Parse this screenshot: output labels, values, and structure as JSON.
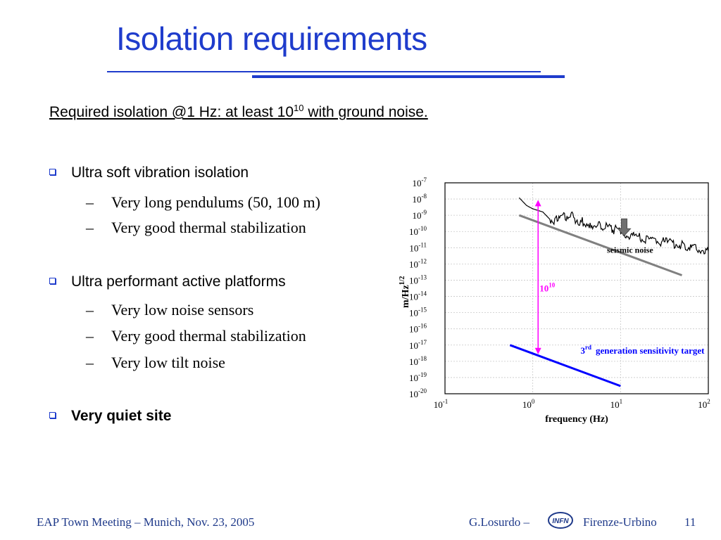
{
  "slide": {
    "title": "Isolation requirements",
    "intro": {
      "label": "Required isolation @1 Hz",
      "text_before": ": at least 10",
      "exponent": "10",
      "text_after": " with ground noise."
    },
    "bullets": [
      {
        "text": "Ultra soft vibration isolation",
        "subitems": [
          "Very long pendulums (50, 100 m)",
          "Very good thermal stabilization"
        ]
      },
      {
        "text": "Ultra performant active platforms",
        "subitems": [
          "Very low noise sensors",
          "Very good thermal stabilization",
          "Very low tilt noise"
        ]
      },
      {
        "text": "Very quiet site",
        "subitems": []
      }
    ],
    "sub_dash": "–"
  },
  "footer": {
    "left": "EAP Town Meeting – Munich, Nov. 23, 2005",
    "author": "G.Losurdo –",
    "logo_text": "INFN",
    "affiliation": "Firenze-Urbino",
    "page_number": "11"
  },
  "chart_data": {
    "type": "line",
    "xlabel": "frequency (Hz)",
    "ylabel": "m/Hz^1/2",
    "x_scale": "log",
    "y_scale": "log",
    "xlim": [
      0.1,
      100
    ],
    "ylim": [
      1e-20,
      1e-07
    ],
    "x_tick_labels": [
      {
        "base": "10",
        "exp": "-1"
      },
      {
        "base": "10",
        "exp": "0"
      },
      {
        "base": "10",
        "exp": "1"
      },
      {
        "base": "10",
        "exp": "2"
      }
    ],
    "y_tick_labels": [
      {
        "base": "10",
        "exp": "-7"
      },
      {
        "base": "10",
        "exp": "-8"
      },
      {
        "base": "10",
        "exp": "-9"
      },
      {
        "base": "10",
        "exp": "-10"
      },
      {
        "base": "10",
        "exp": "-11"
      },
      {
        "base": "10",
        "exp": "-12"
      },
      {
        "base": "10",
        "exp": "-13"
      },
      {
        "base": "10",
        "exp": "-14"
      },
      {
        "base": "10",
        "exp": "-15"
      },
      {
        "base": "10",
        "exp": "-16"
      },
      {
        "base": "10",
        "exp": "-17"
      },
      {
        "base": "10",
        "exp": "-18"
      },
      {
        "base": "10",
        "exp": "-19"
      },
      {
        "base": "10",
        "exp": "-20"
      }
    ],
    "grid": true,
    "series": [
      {
        "color": "#000000",
        "points": [
          [
            0.7,
            1.2e-08
          ],
          [
            0.85,
            4e-09
          ],
          [
            1.0,
            2.5e-09
          ],
          [
            1.3,
            1.6e-09
          ],
          [
            1.6,
            5e-10
          ],
          [
            1.9,
            5e-10
          ],
          [
            2.2,
            1e-09
          ],
          [
            2.8,
            8e-10
          ],
          [
            3.5,
            4e-10
          ],
          [
            4.5,
            3e-10
          ],
          [
            6,
            2e-10
          ],
          [
            8,
            1.5e-10
          ],
          [
            11,
            8e-11
          ],
          [
            15,
            5e-11
          ],
          [
            22,
            3e-11
          ],
          [
            35,
            2e-11
          ],
          [
            55,
            1.3e-11
          ],
          [
            80,
            8e-12
          ],
          [
            100,
            6e-12
          ]
        ]
      },
      {
        "color": "#808080",
        "points": [
          [
            0.7,
            1e-09
          ],
          [
            50,
            2e-13
          ]
        ]
      },
      {
        "color": "#0000ff",
        "points": [
          [
            0.55,
            1e-17
          ],
          [
            10,
            3e-20
          ]
        ]
      }
    ],
    "annotations": [
      {
        "text": "seismic noise",
        "x": 7,
        "y": 5e-12
      },
      {
        "text_base": "10",
        "text_exp": "10",
        "color": "#ff00ff",
        "x": 1.15,
        "y": 2e-14
      },
      {
        "text_base": "3",
        "text_exp": "rd",
        "color": "#0000ff",
        "text": "generation sensitivity target",
        "x": 3.5,
        "y": 3e-18
      }
    ]
  }
}
